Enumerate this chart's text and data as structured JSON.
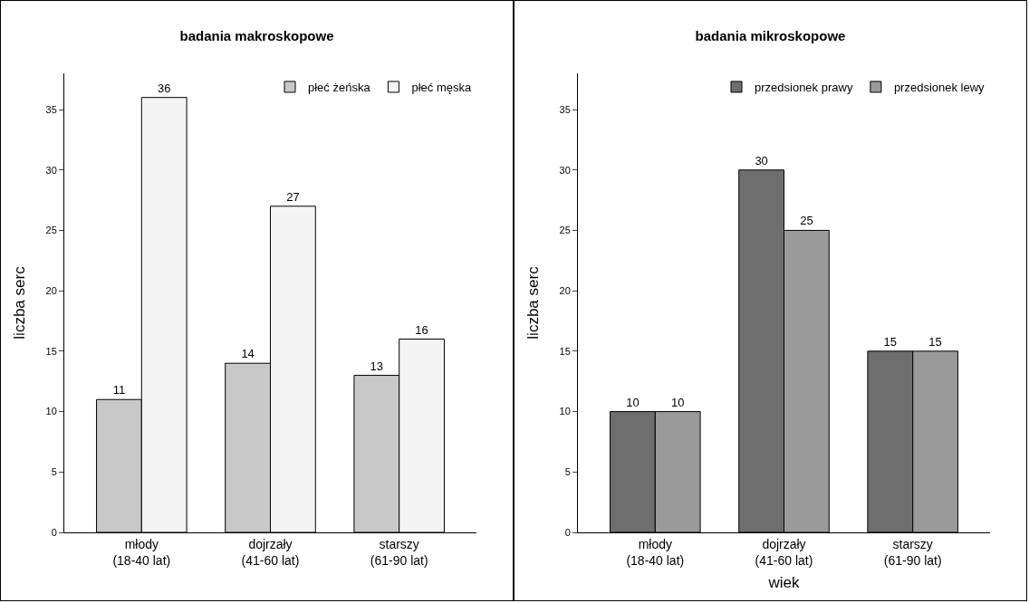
{
  "chart_data": [
    {
      "type": "bar",
      "title": "badania makroskopowe",
      "ylabel": "liczba serc",
      "categories": [
        "młody\n(18-40 lat)",
        "dojrzały\n(41-60 lat)",
        "starszy\n(61-90 lat)"
      ],
      "series": [
        {
          "name": "płeć żeńska",
          "color": "#c8c8c8",
          "values": [
            11,
            14,
            13
          ]
        },
        {
          "name": "płeć męska",
          "color": "#f4f4f4",
          "values": [
            36,
            27,
            16
          ]
        }
      ],
      "ylim": [
        0,
        38
      ],
      "yticks": [
        0,
        5,
        10,
        15,
        20,
        25,
        30,
        35
      ],
      "grid": false,
      "legend": "top right",
      "data_labels": true
    },
    {
      "type": "bar",
      "title": "badania mikroskopowe",
      "ylabel": "liczba serc",
      "xlabel": "wiek",
      "categories": [
        "młody\n(18-40 lat)",
        "dojrzały\n(41-60 lat)",
        "starszy\n(61-90 lat)"
      ],
      "series": [
        {
          "name": "przedsionek prawy",
          "color": "#6e6e6e",
          "values": [
            10,
            30,
            15
          ]
        },
        {
          "name": "przedsionek lewy",
          "color": "#9a9a9a",
          "values": [
            10,
            25,
            15
          ]
        }
      ],
      "ylim": [
        0,
        38
      ],
      "yticks": [
        0,
        5,
        10,
        15,
        20,
        25,
        30,
        35
      ],
      "grid": false,
      "legend": "top right",
      "data_labels": true
    }
  ]
}
